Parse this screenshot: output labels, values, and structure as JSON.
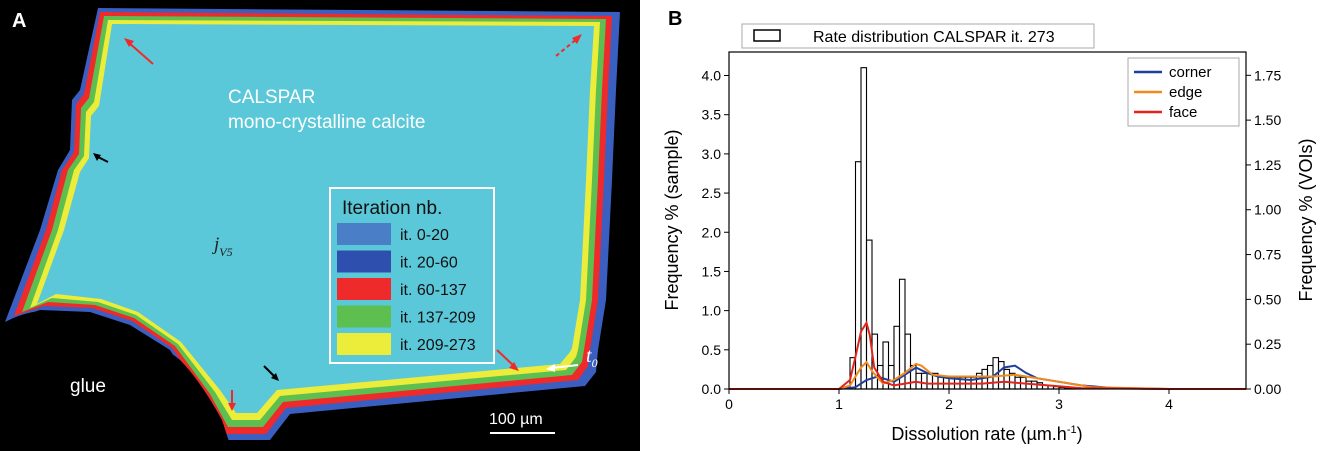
{
  "panel_a": {
    "letter": "A",
    "sample_title": "CALSPAR",
    "sample_subtitle": "mono-crystalline calcite",
    "symbol_main": "j",
    "symbol_sub": "V5",
    "glue_label": "glue",
    "time_label_main": "t",
    "time_label_sub": "0",
    "scale_bar_label": "100 µm",
    "legend_title": "Iteration nb.",
    "legend_items": [
      {
        "label": "it. 0-20",
        "color": "#4a7fc8"
      },
      {
        "label": "it. 20-60",
        "color": "#2f4fae"
      },
      {
        "label": "it. 60-137",
        "color": "#ee2a2a"
      },
      {
        "label": "it. 137-209",
        "color": "#5cbf4f"
      },
      {
        "label": "it. 209-273",
        "color": "#ecec3a"
      }
    ],
    "colors": {
      "background": "#000000",
      "crystal": "#5ac8d8",
      "outer_blue": "#3a5fc0",
      "red": "#ee2a2a",
      "green": "#5cbf4f",
      "yellow": "#ecec3a"
    }
  },
  "chart_data": {
    "letter": "B",
    "type": "bar",
    "legend_histogram_label": "Rate distribution CALSPAR it. 273",
    "xlabel": "Dissolution rate (µm.h",
    "xlabel_sup": "-1",
    "xlabel_tail": ")",
    "ylabel_left": "Frequency % (sample)",
    "ylabel_right": "Frequency % (VOIs)",
    "xlim": [
      0,
      4.7
    ],
    "ylim_left": [
      0,
      4.3
    ],
    "ylim_right": [
      0,
      1.88
    ],
    "x_ticks": [
      0,
      1,
      2,
      3,
      4
    ],
    "y_left_ticks": [
      "0.0",
      "0.5",
      "1.0",
      "1.5",
      "2.0",
      "2.5",
      "3.0",
      "3.5",
      "4.0"
    ],
    "y_right_ticks": [
      "0.00",
      "0.25",
      "0.50",
      "0.75",
      "1.00",
      "1.25",
      "1.50",
      "1.75"
    ],
    "bin_width": 0.05,
    "bins_start": [
      1.1,
      1.15,
      1.2,
      1.25,
      1.3,
      1.35,
      1.4,
      1.45,
      1.5,
      1.55,
      1.6,
      1.65,
      1.7,
      1.75,
      1.8,
      1.85,
      1.9,
      1.95,
      2.0,
      2.05,
      2.1,
      2.15,
      2.2,
      2.25,
      2.3,
      2.35,
      2.4,
      2.45,
      2.5,
      2.55,
      2.6,
      2.65,
      2.7,
      2.75,
      2.8,
      2.85,
      2.9,
      2.95,
      3.0,
      3.05,
      3.1
    ],
    "frequencies": [
      0.4,
      2.9,
      4.1,
      1.9,
      0.7,
      0.3,
      0.6,
      0.3,
      0.8,
      1.4,
      0.7,
      0.3,
      0.2,
      0.2,
      0.2,
      0.2,
      0.15,
      0.15,
      0.15,
      0.15,
      0.15,
      0.15,
      0.15,
      0.2,
      0.25,
      0.3,
      0.4,
      0.35,
      0.25,
      0.2,
      0.15,
      0.15,
      0.1,
      0.1,
      0.08,
      0.05,
      0.04,
      0.03,
      0.02,
      0.01,
      0.01
    ],
    "series": [
      {
        "name": "corner",
        "axis": "right",
        "color": "#1f3f9a",
        "x": [
          0,
          1.0,
          1.15,
          1.25,
          1.35,
          1.5,
          1.6,
          1.7,
          1.8,
          1.9,
          2.0,
          2.2,
          2.4,
          2.5,
          2.6,
          2.7,
          2.8,
          3.0,
          3.2,
          3.5,
          4.0,
          4.7
        ],
        "y": [
          0,
          0,
          0.01,
          0.05,
          0.07,
          0.04,
          0.08,
          0.12,
          0.09,
          0.07,
          0.06,
          0.05,
          0.07,
          0.12,
          0.13,
          0.09,
          0.06,
          0.04,
          0.02,
          0.005,
          0,
          0
        ]
      },
      {
        "name": "edge",
        "axis": "right",
        "color": "#f08a1e",
        "x": [
          0,
          1.0,
          1.1,
          1.2,
          1.25,
          1.3,
          1.4,
          1.5,
          1.6,
          1.7,
          1.75,
          1.85,
          2.0,
          2.2,
          2.4,
          2.6,
          2.8,
          3.0,
          3.3,
          4.0,
          4.7
        ],
        "y": [
          0,
          0,
          0.02,
          0.12,
          0.15,
          0.1,
          0.03,
          0.05,
          0.09,
          0.14,
          0.13,
          0.08,
          0.07,
          0.07,
          0.07,
          0.08,
          0.06,
          0.04,
          0.01,
          0,
          0
        ]
      },
      {
        "name": "face",
        "axis": "right",
        "color": "#e3241b",
        "x": [
          0,
          1.0,
          1.1,
          1.15,
          1.2,
          1.25,
          1.28,
          1.32,
          1.4,
          1.5,
          1.6,
          1.7,
          1.8,
          2.0,
          2.3,
          2.5,
          2.7,
          2.9,
          3.2,
          4.0,
          4.7
        ],
        "y": [
          0,
          0,
          0.05,
          0.18,
          0.32,
          0.37,
          0.3,
          0.12,
          0.04,
          0.02,
          0.03,
          0.04,
          0.03,
          0.03,
          0.03,
          0.04,
          0.03,
          0.02,
          0.005,
          0,
          0
        ]
      }
    ]
  }
}
